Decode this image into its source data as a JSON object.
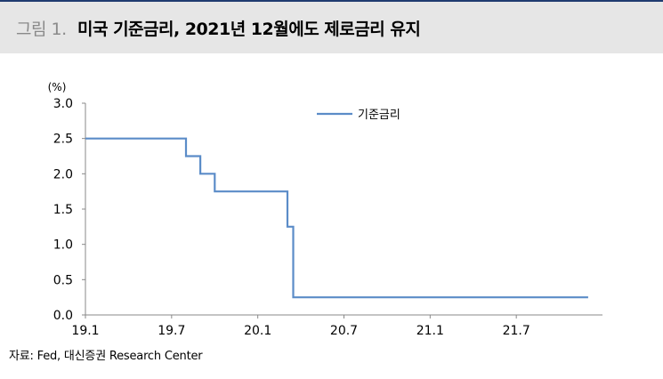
{
  "header": {
    "figure_number": "그림 1.",
    "title": "미국 기준금리, 2021년 12월에도 제로금리 유지"
  },
  "source": "자료: Fed, 대신증권 Research Center",
  "chart_data": {
    "type": "line",
    "title": "미국 기준금리, 2021년 12월에도 제로금리 유지",
    "ylabel": "(%)",
    "xlabel": "",
    "x_tick_labels": [
      "19.1",
      "19.7",
      "20.1",
      "20.7",
      "21.1",
      "21.7"
    ],
    "x_tick_positions": [
      "2019-01",
      "2019-07",
      "2020-01",
      "2020-07",
      "2021-01",
      "2021-07"
    ],
    "xlim": [
      "2019-01",
      "2022-01"
    ],
    "y_ticks": [
      0.0,
      0.5,
      1.0,
      1.5,
      2.0,
      2.5,
      3.0
    ],
    "y_tick_labels": [
      "0.0",
      "0.5",
      "1.0",
      "1.5",
      "2.0",
      "2.5",
      "3.0"
    ],
    "ylim": [
      0,
      3.0
    ],
    "grid": false,
    "legend_position": "top-right",
    "series": [
      {
        "name": "기준금리",
        "color": "#5b8cc8",
        "step": true,
        "x": [
          "2019-01",
          "2019-08",
          "2019-09",
          "2019-10",
          "2020-03-03",
          "2020-03-15",
          "2021-12"
        ],
        "values": [
          2.5,
          2.25,
          2.0,
          1.75,
          1.25,
          0.25,
          0.25
        ]
      }
    ]
  }
}
